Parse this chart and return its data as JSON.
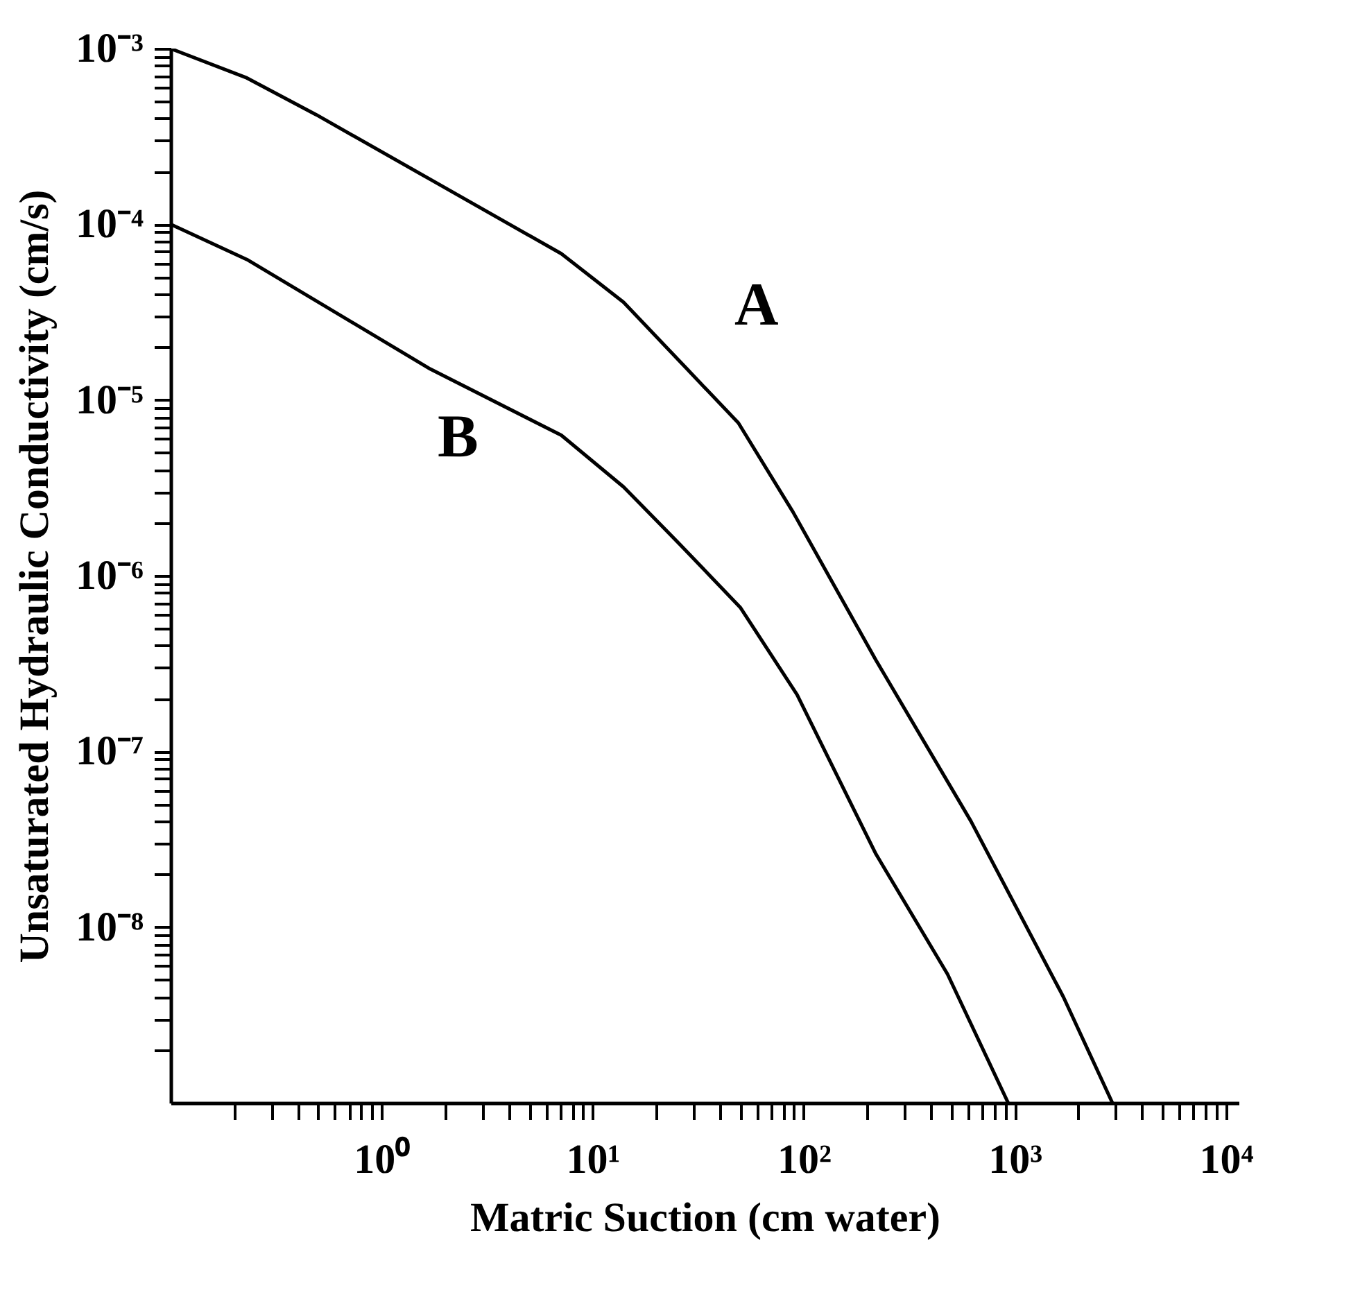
{
  "chart_data": {
    "type": "line",
    "xlabel": "Matric Suction (cm water)",
    "ylabel": "Unsaturated Hydraulic Conductivity (cm/s)",
    "log": "xy",
    "grid": false,
    "legend": false,
    "marker": "none",
    "line_style": "solid",
    "xlim": [
      0.1,
      11500
    ],
    "ylim": [
      1e-09,
      0.001
    ],
    "xticks": [
      {
        "value": 1,
        "label": "10⁰"
      },
      {
        "value": 10,
        "label": "10¹"
      },
      {
        "value": 100,
        "label": "10²"
      },
      {
        "value": 1000,
        "label": "10³"
      },
      {
        "value": 10000,
        "label": "10⁴"
      },
      {
        "value": 0.2,
        "label": null
      },
      {
        "value": 0.3,
        "label": null
      },
      {
        "value": 0.4,
        "label": null
      },
      {
        "value": 0.5,
        "label": null
      },
      {
        "value": 0.6,
        "label": null
      },
      {
        "value": 0.7,
        "label": null
      },
      {
        "value": 0.8,
        "label": null
      },
      {
        "value": 0.9,
        "label": null
      },
      {
        "value": 2,
        "label": null
      },
      {
        "value": 3,
        "label": null
      },
      {
        "value": 4,
        "label": null
      },
      {
        "value": 5,
        "label": null
      },
      {
        "value": 6,
        "label": null
      },
      {
        "value": 7,
        "label": null
      },
      {
        "value": 8,
        "label": null
      },
      {
        "value": 9,
        "label": null
      },
      {
        "value": 20,
        "label": null
      },
      {
        "value": 30,
        "label": null
      },
      {
        "value": 40,
        "label": null
      },
      {
        "value": 50,
        "label": null
      },
      {
        "value": 60,
        "label": null
      },
      {
        "value": 70,
        "label": null
      },
      {
        "value": 80,
        "label": null
      },
      {
        "value": 90,
        "label": null
      },
      {
        "value": 200,
        "label": null
      },
      {
        "value": 300,
        "label": null
      },
      {
        "value": 400,
        "label": null
      },
      {
        "value": 500,
        "label": null
      },
      {
        "value": 600,
        "label": null
      },
      {
        "value": 700,
        "label": null
      },
      {
        "value": 800,
        "label": null
      },
      {
        "value": 900,
        "label": null
      },
      {
        "value": 2000,
        "label": null
      },
      {
        "value": 3000,
        "label": null
      },
      {
        "value": 4000,
        "label": null
      },
      {
        "value": 5000,
        "label": null
      },
      {
        "value": 6000,
        "label": null
      },
      {
        "value": 7000,
        "label": null
      },
      {
        "value": 8000,
        "label": null
      },
      {
        "value": 9000,
        "label": null
      }
    ],
    "yticks": [
      {
        "value": 0.001,
        "label": "10⁻³"
      },
      {
        "value": 0.0001,
        "label": "10⁻⁴"
      },
      {
        "value": 1e-05,
        "label": "10⁻⁵"
      },
      {
        "value": 1e-06,
        "label": "10⁻⁶"
      },
      {
        "value": 1e-07,
        "label": "10⁻⁷"
      },
      {
        "value": 1e-08,
        "label": "10⁻⁸"
      },
      {
        "value": 2e-09,
        "label": null
      },
      {
        "value": 3e-09,
        "label": null
      },
      {
        "value": 4e-09,
        "label": null
      },
      {
        "value": 5e-09,
        "label": null
      },
      {
        "value": 6e-09,
        "label": null
      },
      {
        "value": 7e-09,
        "label": null
      },
      {
        "value": 8e-09,
        "label": null
      },
      {
        "value": 9e-09,
        "label": null
      },
      {
        "value": 2e-08,
        "label": null
      },
      {
        "value": 3e-08,
        "label": null
      },
      {
        "value": 4e-08,
        "label": null
      },
      {
        "value": 5e-08,
        "label": null
      },
      {
        "value": 6e-08,
        "label": null
      },
      {
        "value": 7e-08,
        "label": null
      },
      {
        "value": 8e-08,
        "label": null
      },
      {
        "value": 9e-08,
        "label": null
      },
      {
        "value": 2e-07,
        "label": null
      },
      {
        "value": 3e-07,
        "label": null
      },
      {
        "value": 4e-07,
        "label": null
      },
      {
        "value": 5e-07,
        "label": null
      },
      {
        "value": 6e-07,
        "label": null
      },
      {
        "value": 7e-07,
        "label": null
      },
      {
        "value": 8e-07,
        "label": null
      },
      {
        "value": 9e-07,
        "label": null
      },
      {
        "value": 2e-06,
        "label": null
      },
      {
        "value": 3e-06,
        "label": null
      },
      {
        "value": 4e-06,
        "label": null
      },
      {
        "value": 5e-06,
        "label": null
      },
      {
        "value": 6e-06,
        "label": null
      },
      {
        "value": 7e-06,
        "label": null
      },
      {
        "value": 8e-06,
        "label": null
      },
      {
        "value": 9e-06,
        "label": null
      },
      {
        "value": 2e-05,
        "label": null
      },
      {
        "value": 3e-05,
        "label": null
      },
      {
        "value": 4e-05,
        "label": null
      },
      {
        "value": 5e-05,
        "label": null
      },
      {
        "value": 6e-05,
        "label": null
      },
      {
        "value": 7e-05,
        "label": null
      },
      {
        "value": 8e-05,
        "label": null
      },
      {
        "value": 9e-05,
        "label": null
      },
      {
        "value": 0.0002,
        "label": null
      },
      {
        "value": 0.0003,
        "label": null
      },
      {
        "value": 0.0004,
        "label": null
      },
      {
        "value": 0.0005,
        "label": null
      },
      {
        "value": 0.0006,
        "label": null
      },
      {
        "value": 0.0007,
        "label": null
      },
      {
        "value": 0.0008,
        "label": null
      },
      {
        "value": 0.0009,
        "label": null
      }
    ],
    "series": [
      {
        "name": "A",
        "color": "#000000",
        "x": [
          0.1,
          0.23,
          0.49,
          1.7,
          7.1,
          14,
          28,
          49,
          89,
          220,
          620,
          1700,
          2900
        ],
        "values": [
          0.001,
          0.00068,
          0.00042,
          0.00018,
          6.8e-05,
          3.6e-05,
          1.5e-05,
          7.4e-06,
          2.3e-06,
          3.3e-07,
          4e-08,
          4e-09,
          1e-09
        ]
      },
      {
        "name": "B",
        "color": "#000000",
        "x": [
          0.1,
          0.23,
          1.7,
          7.1,
          14,
          26,
          50,
          93,
          220,
          480,
          930
        ],
        "values": [
          0.0001,
          6.3e-05,
          1.5e-05,
          6.3e-06,
          3.2e-06,
          1.5e-06,
          6.6e-07,
          2.1e-07,
          2.6e-08,
          5.4e-09,
          1e-09
        ]
      }
    ]
  }
}
